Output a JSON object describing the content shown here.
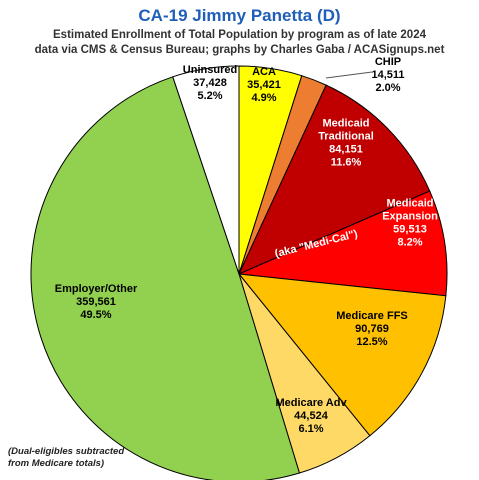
{
  "title": "CA-19 Jimmy Panetta (D)",
  "subtitle_line1": "Estimated Enrollment of Total Population by program as of late 2024",
  "subtitle_line2": "data via CMS & Census Bureau; graphs by Charles Gaba / ACASignups.net",
  "footnote_line1": "(Dual-eligibles subtracted",
  "footnote_line2": "from Medicare totals)",
  "aka_label": "(aka \"Medi-Cal\")",
  "chart_data": {
    "type": "pie",
    "start": "12 o'clock",
    "direction": "clockwise",
    "slices": [
      {
        "label": "ACA",
        "value": 35421,
        "value_text": "35,421",
        "pct_text": "4.9%",
        "color": "#ffff00"
      },
      {
        "label": "CHIP",
        "value": 14511,
        "value_text": "14,511",
        "pct_text": "2.0%",
        "color": "#ed7d31"
      },
      {
        "label": "Medicaid Traditional",
        "label_lines": [
          "Medicaid",
          "Traditional"
        ],
        "value": 84151,
        "value_text": "84,151",
        "pct_text": "11.6%",
        "color": "#c00000"
      },
      {
        "label": "Medicaid Expansion",
        "label_lines": [
          "Medicaid",
          "Expansion"
        ],
        "value": 59513,
        "value_text": "59,513",
        "pct_text": "8.2%",
        "color": "#ff0000"
      },
      {
        "label": "Medicare FFS",
        "value": 90769,
        "value_text": "90,769",
        "pct_text": "12.5%",
        "color": "#ffc000"
      },
      {
        "label": "Medicare Adv",
        "value": 44524,
        "value_text": "44,524",
        "pct_text": "6.1%",
        "color": "#ffd966"
      },
      {
        "label": "Employer/Other",
        "value": 359561,
        "value_text": "359,561",
        "pct_text": "49.5%",
        "color": "#92d050"
      },
      {
        "label": "Uninsured",
        "value": 37428,
        "value_text": "37,428",
        "pct_text": "5.2%",
        "color": "#ffffff"
      }
    ]
  }
}
